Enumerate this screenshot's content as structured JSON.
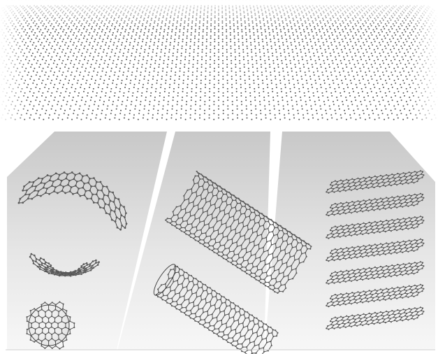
{
  "figure": {
    "sheet": {
      "name": "graphene-sheet",
      "color": "#3a3a3a"
    },
    "panels": [
      {
        "name": "panel-fullerene",
        "items": [
          "buckyball-fragment-open",
          "buckyball-fragment-bowl",
          "buckyball"
        ]
      },
      {
        "name": "panel-nanotube",
        "items": [
          "nanotube-open",
          "nanotube-closed"
        ]
      },
      {
        "name": "panel-graphite",
        "items": [
          "graphite-layers"
        ],
        "layer_count": 7
      }
    ],
    "colors": {
      "panel": "#d4d4d4",
      "panel_light": "#f4f4f4",
      "atom": "#5a5a5a",
      "bond": "#444444",
      "divider": "#ffffff"
    }
  }
}
